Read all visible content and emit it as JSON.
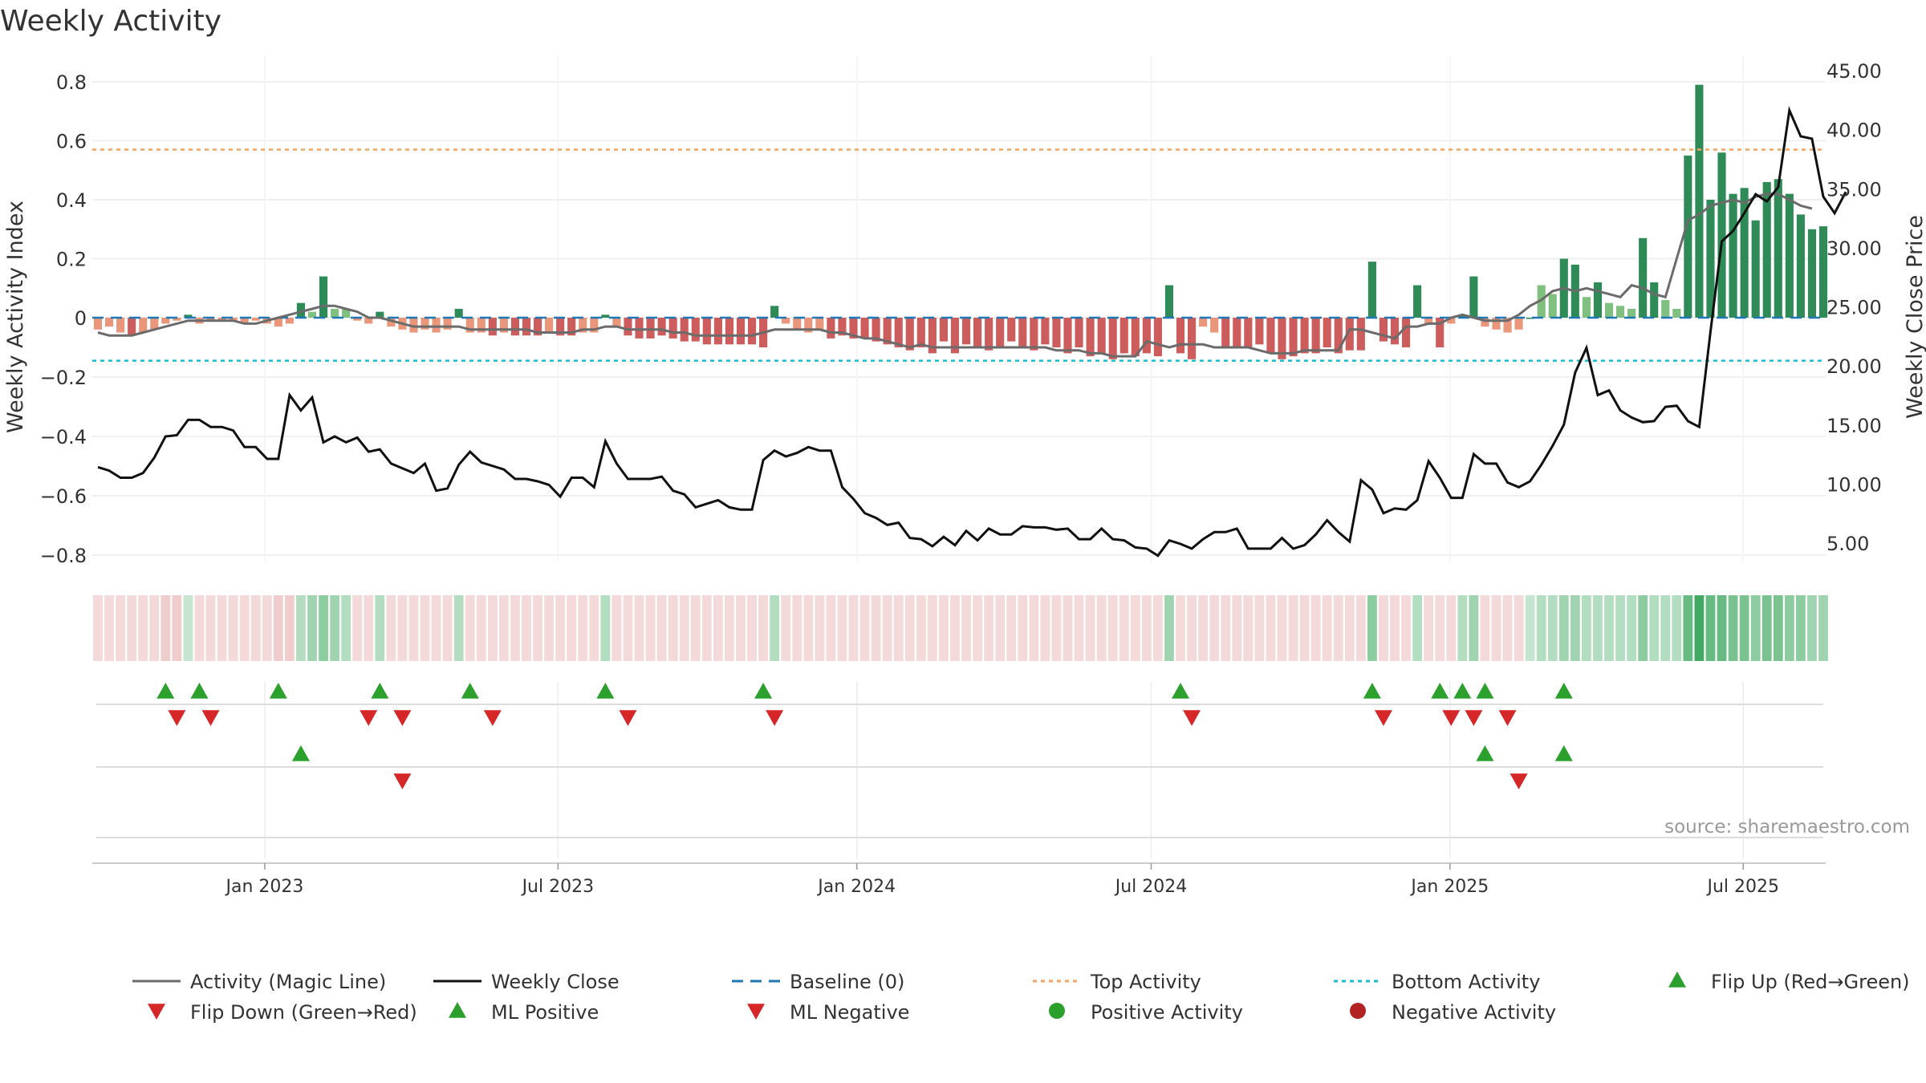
{
  "chart_data": {
    "type": "bar",
    "title": "Weekly Activity",
    "ylabel": "Weekly Activity Index",
    "y2label": "Weekly Close Price",
    "source": "source: sharemaestro.com",
    "ylim": [
      -0.85,
      0.82
    ],
    "y2lim": [
      3.0,
      45.5
    ],
    "yticks": [
      {
        "v": 0.8,
        "label": "0.8"
      },
      {
        "v": 0.6,
        "label": "0.6"
      },
      {
        "v": 0.4,
        "label": "0.4"
      },
      {
        "v": 0.2,
        "label": "0.2"
      },
      {
        "v": 0,
        "label": "0"
      },
      {
        "v": -0.2,
        "label": "−0.2"
      },
      {
        "v": -0.4,
        "label": "−0.4"
      },
      {
        "v": -0.6,
        "label": "−0.6"
      },
      {
        "v": -0.8,
        "label": "−0.8"
      }
    ],
    "y2ticks": [
      "45.00",
      "40.00",
      "35.00",
      "30.00",
      "25.00",
      "20.00",
      "15.00",
      "10.00",
      "5.00"
    ],
    "xticks": [
      {
        "i": 14.8,
        "label": "Jan 2023"
      },
      {
        "i": 40.8,
        "label": "Jul 2023"
      },
      {
        "i": 67.3,
        "label": "Jan 2024"
      },
      {
        "i": 93.4,
        "label": "Jul 2024"
      },
      {
        "i": 119.9,
        "label": "Jan 2025"
      },
      {
        "i": 145.9,
        "label": "Jul 2025"
      }
    ],
    "top_activity": 0.57,
    "bottom_activity": -0.145,
    "bars": [
      -0.04,
      -0.03,
      -0.05,
      -0.06,
      -0.05,
      -0.04,
      -0.02,
      -0.01,
      0.01,
      -0.02,
      -0.01,
      -0.01,
      -0.01,
      -0.02,
      -0.01,
      -0.02,
      -0.03,
      -0.02,
      0.05,
      0.02,
      0.14,
      0.03,
      0.03,
      -0.01,
      -0.02,
      0.02,
      -0.03,
      -0.04,
      -0.05,
      -0.04,
      -0.05,
      -0.04,
      0.03,
      -0.05,
      -0.05,
      -0.06,
      -0.05,
      -0.06,
      -0.06,
      -0.06,
      -0.05,
      -0.06,
      -0.06,
      -0.05,
      -0.05,
      0.01,
      -0.03,
      -0.06,
      -0.07,
      -0.07,
      -0.06,
      -0.07,
      -0.08,
      -0.08,
      -0.09,
      -0.09,
      -0.09,
      -0.09,
      -0.09,
      -0.1,
      0.04,
      -0.02,
      -0.04,
      -0.05,
      -0.04,
      -0.07,
      -0.06,
      -0.07,
      -0.07,
      -0.08,
      -0.09,
      -0.1,
      -0.11,
      -0.1,
      -0.12,
      -0.08,
      -0.12,
      -0.09,
      -0.1,
      -0.11,
      -0.1,
      -0.08,
      -0.1,
      -0.11,
      -0.09,
      -0.1,
      -0.12,
      -0.1,
      -0.13,
      -0.12,
      -0.14,
      -0.12,
      -0.13,
      -0.12,
      -0.13,
      0.11,
      -0.12,
      -0.14,
      -0.03,
      -0.05,
      -0.1,
      -0.1,
      -0.1,
      -0.09,
      -0.12,
      -0.14,
      -0.13,
      -0.12,
      -0.12,
      -0.1,
      -0.12,
      -0.11,
      -0.11,
      0.19,
      -0.08,
      -0.09,
      -0.1,
      0.11,
      -0.02,
      -0.1,
      -0.02,
      0.01,
      0.14,
      -0.03,
      -0.04,
      -0.05,
      -0.04,
      0.0,
      0.11,
      0.08,
      0.2,
      0.18,
      0.07,
      0.12,
      0.05,
      0.04,
      0.03,
      0.27,
      0.12,
      0.06,
      0.03,
      0.55,
      0.79,
      0.4,
      0.56,
      0.42,
      0.44,
      0.33,
      0.46,
      0.47,
      0.42,
      0.35,
      0.3,
      0.31
    ],
    "close": [
      11.5,
      11.2,
      10.6,
      10.6,
      11.0,
      12.3,
      14.1,
      14.2,
      15.5,
      15.5,
      14.9,
      14.9,
      14.6,
      13.2,
      13.2,
      12.2,
      12.2,
      17.6,
      16.3,
      17.4,
      13.6,
      14.1,
      13.6,
      14.0,
      12.8,
      13.0,
      11.8,
      11.4,
      11.0,
      11.8,
      9.5,
      9.7,
      11.7,
      12.8,
      11.9,
      11.6,
      11.3,
      10.5,
      10.5,
      10.3,
      10.0,
      9.0,
      10.6,
      10.6,
      9.8,
      13.7,
      11.8,
      10.5,
      10.5,
      10.5,
      10.7,
      9.5,
      9.2,
      8.1,
      8.4,
      8.7,
      8.1,
      7.9,
      7.9,
      12.1,
      12.9,
      12.4,
      12.7,
      13.2,
      12.9,
      12.9,
      9.8,
      8.8,
      7.6,
      7.2,
      6.6,
      6.8,
      5.5,
      5.4,
      4.8,
      5.6,
      4.9,
      6.1,
      5.3,
      6.3,
      5.8,
      5.8,
      6.5,
      6.4,
      6.4,
      6.2,
      6.3,
      5.4,
      5.4,
      6.3,
      5.4,
      5.3,
      4.7,
      4.6,
      4.0,
      5.3,
      5.0,
      4.6,
      5.4,
      6.0,
      6.0,
      6.3,
      4.6,
      4.6,
      4.6,
      5.5,
      4.6,
      4.9,
      5.8,
      7.0,
      6.0,
      5.2,
      10.4,
      9.6,
      7.6,
      8.0,
      7.9,
      8.7,
      12.0,
      10.6,
      8.9,
      8.9,
      12.6,
      11.8,
      11.8,
      10.2,
      9.8,
      10.3,
      11.7,
      13.3,
      15.1,
      19.5,
      21.6,
      17.6,
      18.0,
      16.3,
      15.7,
      15.3,
      15.4,
      16.6,
      16.7,
      15.4,
      14.9,
      23.0,
      30.6,
      31.5,
      33.0,
      34.6,
      34.0,
      35.2,
      41.7,
      39.5,
      39.3,
      34.4,
      33.0,
      34.8
    ],
    "magic_line": [
      -0.05,
      -0.06,
      -0.06,
      -0.06,
      -0.05,
      -0.04,
      -0.03,
      -0.02,
      -0.01,
      -0.01,
      -0.01,
      -0.01,
      -0.01,
      -0.02,
      -0.02,
      -0.01,
      0.0,
      0.01,
      0.02,
      0.03,
      0.04,
      0.04,
      0.03,
      0.02,
      0.0,
      0.0,
      -0.01,
      -0.02,
      -0.03,
      -0.03,
      -0.03,
      -0.03,
      -0.03,
      -0.04,
      -0.04,
      -0.04,
      -0.04,
      -0.04,
      -0.04,
      -0.05,
      -0.05,
      -0.05,
      -0.05,
      -0.04,
      -0.04,
      -0.03,
      -0.03,
      -0.04,
      -0.04,
      -0.04,
      -0.04,
      -0.05,
      -0.05,
      -0.06,
      -0.06,
      -0.06,
      -0.06,
      -0.06,
      -0.06,
      -0.05,
      -0.04,
      -0.04,
      -0.04,
      -0.04,
      -0.04,
      -0.05,
      -0.05,
      -0.06,
      -0.07,
      -0.07,
      -0.08,
      -0.09,
      -0.1,
      -0.09,
      -0.1,
      -0.1,
      -0.1,
      -0.1,
      -0.1,
      -0.1,
      -0.1,
      -0.1,
      -0.1,
      -0.1,
      -0.1,
      -0.11,
      -0.11,
      -0.11,
      -0.12,
      -0.12,
      -0.13,
      -0.13,
      -0.13,
      -0.08,
      -0.09,
      -0.1,
      -0.09,
      -0.09,
      -0.09,
      -0.1,
      -0.1,
      -0.1,
      -0.1,
      -0.11,
      -0.12,
      -0.12,
      -0.12,
      -0.11,
      -0.11,
      -0.11,
      -0.11,
      -0.04,
      -0.04,
      -0.05,
      -0.06,
      -0.07,
      -0.03,
      -0.03,
      -0.02,
      -0.02,
      0.0,
      0.01,
      0.0,
      -0.01,
      -0.01,
      -0.01,
      0.01,
      0.04,
      0.06,
      0.09,
      0.1,
      0.09,
      0.1,
      0.09,
      0.08,
      0.07,
      0.11,
      0.1,
      0.08,
      0.07,
      0.2,
      0.33,
      0.35,
      0.38,
      0.39,
      0.4,
      0.39,
      0.41,
      0.42,
      0.42,
      0.4,
      0.38,
      0.37
    ],
    "heat_level": [
      0.3,
      0.3,
      0.3,
      0.3,
      0.3,
      0.3,
      0.4,
      0.4,
      0.3,
      0.3,
      0.3,
      0.3,
      0.3,
      0.3,
      0.3,
      0.3,
      0.4,
      0.4,
      0.4,
      0.5,
      0.6,
      0.5,
      0.4,
      0.3,
      0.3,
      0.4,
      0.3,
      0.3,
      0.3,
      0.3,
      0.3,
      0.3,
      0.4,
      0.3,
      0.3,
      0.3,
      0.3,
      0.3,
      0.3,
      0.3,
      0.3,
      0.3,
      0.3,
      0.3,
      0.3,
      0.4,
      0.3,
      0.3,
      0.3,
      0.3,
      0.3,
      0.3,
      0.3,
      0.3,
      0.3,
      0.3,
      0.3,
      0.3,
      0.3,
      0.3,
      0.4,
      0.3,
      0.3,
      0.3,
      0.3,
      0.3,
      0.3,
      0.3,
      0.3,
      0.3,
      0.3,
      0.3,
      0.3,
      0.3,
      0.3,
      0.3,
      0.3,
      0.3,
      0.3,
      0.3,
      0.3,
      0.3,
      0.3,
      0.3,
      0.3,
      0.3,
      0.3,
      0.3,
      0.3,
      0.3,
      0.3,
      0.3,
      0.3,
      0.3,
      0.3,
      0.5,
      0.3,
      0.3,
      0.3,
      0.3,
      0.3,
      0.3,
      0.3,
      0.3,
      0.3,
      0.3,
      0.3,
      0.3,
      0.3,
      0.3,
      0.3,
      0.3,
      0.3,
      0.6,
      0.3,
      0.3,
      0.3,
      0.4,
      0.3,
      0.3,
      0.3,
      0.4,
      0.5,
      0.3,
      0.3,
      0.3,
      0.3,
      0.3,
      0.4,
      0.4,
      0.5,
      0.5,
      0.4,
      0.4,
      0.4,
      0.4,
      0.4,
      0.6,
      0.4,
      0.4,
      0.4,
      0.8,
      1.0,
      0.8,
      0.8,
      0.7,
      0.7,
      0.6,
      0.7,
      0.7,
      0.6,
      0.6,
      0.5,
      0.5
    ],
    "flip_up": [
      6,
      9,
      16,
      25,
      33,
      45,
      59,
      96,
      113,
      119,
      121,
      123,
      130
    ],
    "flip_down": [
      7,
      10,
      24,
      27,
      35,
      47,
      60,
      97,
      114,
      120,
      122,
      125
    ],
    "ml_positive": [
      18,
      123,
      130
    ],
    "ml_negative": [
      27,
      126
    ],
    "colors": {
      "strong_green": "#2e8b57",
      "light_green": "#7fbf7f",
      "strong_red": "#cd5c5c",
      "light_red": "#e9967a",
      "close": "#111111",
      "magic_line": "#6b6b6b",
      "baseline": "#1f77b4",
      "top": "#f4a460",
      "bottom": "#17becf",
      "up_marker": "#2ca02c",
      "down_marker": "#d62728"
    },
    "legend": [
      {
        "label": "Activity (Magic Line)",
        "kind": "line",
        "color": "#6b6b6b"
      },
      {
        "label": "Weekly Close",
        "kind": "line",
        "color": "#111111"
      },
      {
        "label": "Baseline (0)",
        "kind": "dash",
        "color": "#1f77b4"
      },
      {
        "label": "Top Activity",
        "kind": "dot",
        "color": "#f4a460"
      },
      {
        "label": "Bottom Activity",
        "kind": "dot",
        "color": "#17becf"
      },
      {
        "label": "Flip Up (Red→Green)",
        "kind": "up",
        "color": "#2ca02c"
      },
      {
        "label": "Flip Down (Green→Red)",
        "kind": "down",
        "color": "#d62728"
      },
      {
        "label": "ML Positive",
        "kind": "up",
        "color": "#2ca02c"
      },
      {
        "label": "ML Negative",
        "kind": "down",
        "color": "#d62728"
      },
      {
        "label": "Positive Activity",
        "kind": "circle",
        "color": "#2ca02c"
      },
      {
        "label": "Negative Activity",
        "kind": "circle",
        "color": "#b22222"
      }
    ]
  }
}
